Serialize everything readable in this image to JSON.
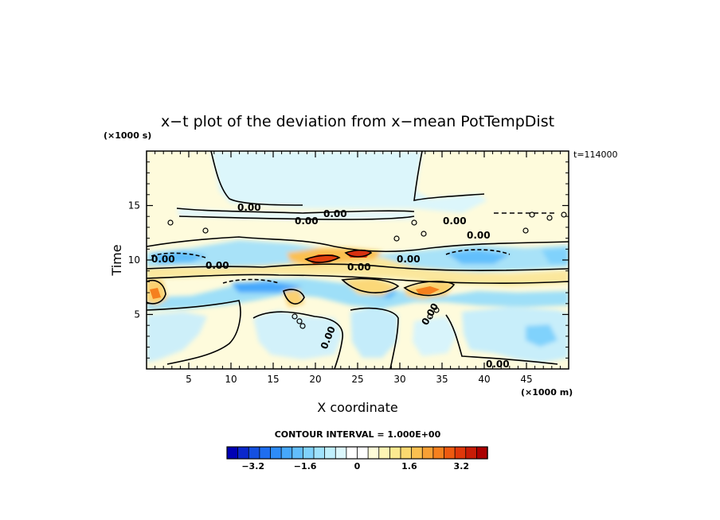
{
  "chart_data": {
    "type": "heatmap",
    "title": "x−t plot of the deviation from x−mean PotTempDist",
    "xlabel": "X coordinate",
    "ylabel": "Time",
    "x_unit": "(×1000 m)",
    "y_unit": "(×1000 s)",
    "time_annotation": "t=114000",
    "xlim": [
      0,
      50
    ],
    "ylim": [
      0,
      20
    ],
    "x_ticks": [
      5,
      10,
      15,
      20,
      25,
      30,
      35,
      40,
      45
    ],
    "y_ticks": [
      5,
      10,
      15
    ],
    "contour_interval_text": "CONTOUR INTERVAL = 1.000E+00",
    "contour_labels": [
      "0.00",
      "0.00",
      "0.00",
      "0.00",
      "0.00",
      "0.00",
      "0.00",
      "0.00",
      "0.00",
      "0.00",
      "0.00",
      "0.00"
    ],
    "colorbar": {
      "range": [
        -4,
        4
      ],
      "tick_values": [
        -3.2,
        -1.6,
        0,
        1.6,
        3.2
      ],
      "tick_labels": [
        "−3.2",
        "−1.6",
        "0",
        "1.6",
        "3.2"
      ],
      "colors": [
        "#0000b4",
        "#0a28cc",
        "#1450e0",
        "#1e6ef0",
        "#2e8cf8",
        "#46a8fc",
        "#62befc",
        "#80d2fc",
        "#a0e2fc",
        "#c0effc",
        "#dcf7fc",
        "#ffffff",
        "#ffffff",
        "#fefcd8",
        "#fdf5b4",
        "#fcea90",
        "#fbd870",
        "#fbc050",
        "#f8a035",
        "#f5801e",
        "#ee5a10",
        "#e0380a",
        "#c81c06",
        "#aa0000"
      ]
    },
    "grid": false
  },
  "colors": {
    "background": "#ffffff",
    "axis": "#000000",
    "contour": "#000000"
  }
}
